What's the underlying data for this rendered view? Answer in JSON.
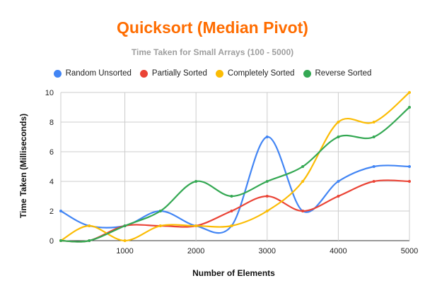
{
  "chart_data": {
    "type": "line",
    "title": "Quicksort (Median Pivot)",
    "subtitle": "Time Taken for Small Arrays (100 - 5000)",
    "xlabel": "Number of Elements",
    "ylabel": "Time Taken (Milliseconds)",
    "x": [
      100,
      500,
      1000,
      1500,
      2000,
      2500,
      3000,
      3500,
      4000,
      4500,
      5000
    ],
    "xlim": [
      100,
      5000
    ],
    "ylim": [
      0,
      10
    ],
    "xticks": [
      1000,
      2000,
      3000,
      4000,
      5000
    ],
    "yticks": [
      0,
      2,
      4,
      6,
      8,
      10
    ],
    "grid": true,
    "legend_position": "top",
    "smooth": true,
    "series": [
      {
        "name": "Random Unsorted",
        "color": "#4285f4",
        "values": [
          2,
          1,
          1,
          2,
          1,
          1,
          7,
          2,
          4,
          5,
          5
        ]
      },
      {
        "name": "Partially Sorted",
        "color": "#ea4335",
        "values": [
          0,
          0,
          1,
          1,
          1,
          2,
          3,
          2,
          3,
          4,
          4
        ]
      },
      {
        "name": "Completely Sorted",
        "color": "#fbbc04",
        "values": [
          0,
          1,
          0,
          1,
          1,
          1,
          2,
          4,
          8,
          8,
          10
        ]
      },
      {
        "name": "Reverse Sorted",
        "color": "#34a853",
        "values": [
          0,
          0,
          1,
          2,
          4,
          3,
          4,
          5,
          7,
          7,
          9
        ]
      }
    ]
  }
}
